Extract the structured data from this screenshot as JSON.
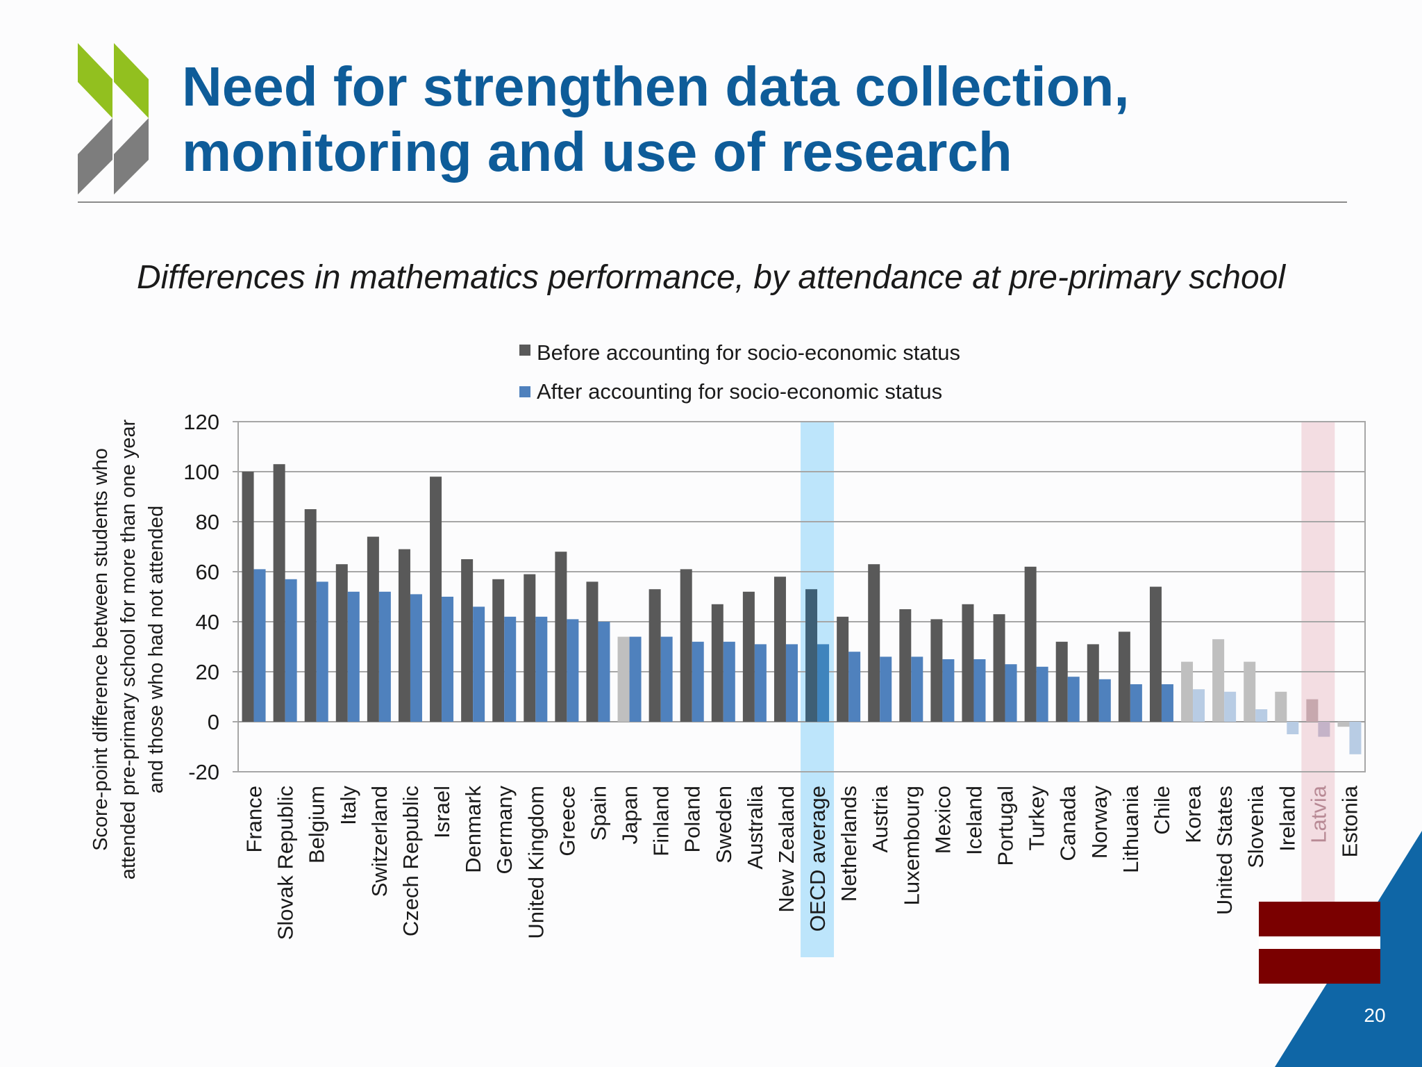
{
  "slide": {
    "title_lines": [
      "Need for strengthen data collection,",
      "monitoring and use of research"
    ],
    "page_number": "20"
  },
  "colors": {
    "brand_blue": "#0e5c99",
    "logo_green": "#92c01f",
    "logo_grey": "#7d7d7d",
    "before_series": "#595959",
    "after_series": "#4f81bd",
    "oecd_highlight": "#bde5fb",
    "latvia_highlight": "#f3dde2",
    "flag_red": "#7a0000"
  },
  "chart_data": {
    "type": "bar",
    "title": "Differences in mathematics performance, by attendance at pre-primary school",
    "ylabel": "Score-point difference between students who attended pre-primary school for more than one year and those who had not attended",
    "ylabel_lines": [
      "Score-point difference between students who",
      "attended pre-primary school for more than one year",
      "and those who had not attended"
    ],
    "ylim": [
      -20,
      120
    ],
    "yticks": [
      -20,
      0,
      20,
      40,
      60,
      80,
      100,
      120
    ],
    "grid": true,
    "legend_position": "top",
    "categories": [
      "France",
      "Slovak Republic",
      "Belgium",
      "Italy",
      "Switzerland",
      "Czech Republic",
      "Israel",
      "Denmark",
      "Germany",
      "United Kingdom",
      "Greece",
      "Spain",
      "Japan",
      "Finland",
      "Poland",
      "Sweden",
      "Australia",
      "New Zealand",
      "OECD average",
      "Netherlands",
      "Austria",
      "Luxembourg",
      "Mexico",
      "Iceland",
      "Portugal",
      "Turkey",
      "Canada",
      "Norway",
      "Lithuania",
      "Chile",
      "Korea",
      "United States",
      "Slovenia",
      "Ireland",
      "Latvia",
      "Estonia"
    ],
    "series": [
      {
        "name": "Before accounting for socio-economic status",
        "values": [
          100,
          103,
          85,
          63,
          74,
          69,
          98,
          65,
          57,
          59,
          68,
          56,
          34,
          53,
          61,
          47,
          52,
          58,
          53,
          42,
          63,
          45,
          41,
          47,
          43,
          62,
          32,
          31,
          36,
          54,
          24,
          33,
          24,
          12,
          9,
          -2
        ]
      },
      {
        "name": "After accounting for socio-economic status",
        "values": [
          61,
          57,
          56,
          52,
          52,
          51,
          50,
          46,
          42,
          42,
          41,
          40,
          34,
          34,
          32,
          32,
          31,
          31,
          31,
          28,
          26,
          26,
          25,
          25,
          23,
          22,
          18,
          17,
          15,
          15,
          13,
          12,
          5,
          -5,
          -6,
          -13
        ]
      }
    ],
    "faded_bars": {
      "Japan": [
        "before"
      ],
      "Korea": [
        "before",
        "after"
      ],
      "United States": [
        "before",
        "after"
      ],
      "Slovenia": [
        "before",
        "after"
      ],
      "Ireland": [
        "before",
        "after"
      ],
      "Latvia": [
        "before",
        "after"
      ],
      "Estonia": [
        "before",
        "after"
      ]
    },
    "highlighted_categories": [
      "OECD average",
      "Latvia"
    ]
  }
}
